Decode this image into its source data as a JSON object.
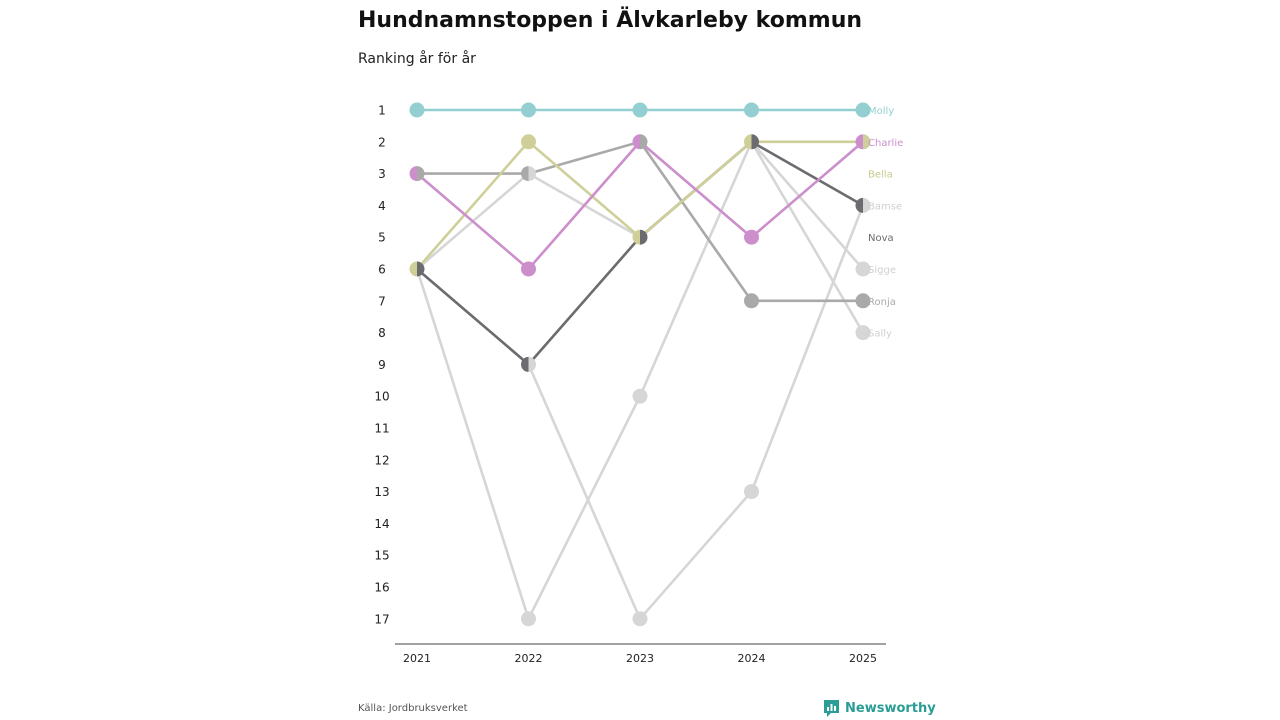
{
  "title": "Hundnamnstoppen i Älvkarleby kommun",
  "subtitle": "Ranking år för år",
  "source": "Källa: Jordbruksverket",
  "brand": "Newsworthy",
  "chart_data": {
    "type": "line",
    "title": "Hundnamnstoppen i Älvkarleby kommun",
    "subtitle": "Ranking år för år",
    "x": [
      "2021",
      "2022",
      "2023",
      "2024",
      "2025"
    ],
    "y_ticks": [
      1,
      2,
      3,
      4,
      5,
      6,
      7,
      8,
      9,
      10,
      11,
      12,
      13,
      14,
      15,
      16,
      17
    ],
    "ylim": [
      1,
      17
    ],
    "y_inverted": true,
    "series": [
      {
        "name": "Sally",
        "color": "#d6d6d6",
        "values": [
          6,
          3,
          5,
          2,
          8
        ]
      },
      {
        "name": "Sigge",
        "color": "#d6d6d6",
        "values": [
          6,
          17,
          10,
          2,
          6
        ]
      },
      {
        "name": "Bamse",
        "color": "#d6d6d6",
        "values": [
          6,
          9,
          17,
          13,
          4
        ]
      },
      {
        "name": "Ronja",
        "color": "#a9a9a9",
        "values": [
          3,
          3,
          2,
          7,
          7
        ]
      },
      {
        "name": "Nova",
        "color": "#6c6c70",
        "values": [
          6,
          9,
          5,
          2,
          4
        ]
      },
      {
        "name": "Bella",
        "color": "#cfcf99",
        "values": [
          6,
          2,
          5,
          2,
          2
        ]
      },
      {
        "name": "Charlie",
        "color": "#cc8fcc",
        "values": [
          3,
          6,
          2,
          5,
          2
        ]
      },
      {
        "name": "Molly",
        "color": "#93cfd0",
        "values": [
          1,
          1,
          1,
          1,
          1
        ]
      }
    ],
    "labels": [
      {
        "name": "Molly",
        "rank": 1,
        "color": "#93cfd0"
      },
      {
        "name": "Charlie",
        "rank": 2,
        "color": "#cc8fcc"
      },
      {
        "name": "Bella",
        "rank": 3,
        "color": "#c9c98a"
      },
      {
        "name": "Bamse",
        "rank": 4,
        "color": "#d0d0d0"
      },
      {
        "name": "Nova",
        "rank": 5,
        "color": "#6c6c70"
      },
      {
        "name": "Sigge",
        "rank": 6,
        "color": "#d0d0d0"
      },
      {
        "name": "Ronja",
        "rank": 7,
        "color": "#a9a9a9"
      },
      {
        "name": "Sally",
        "rank": 8,
        "color": "#d0d0d0"
      }
    ]
  }
}
